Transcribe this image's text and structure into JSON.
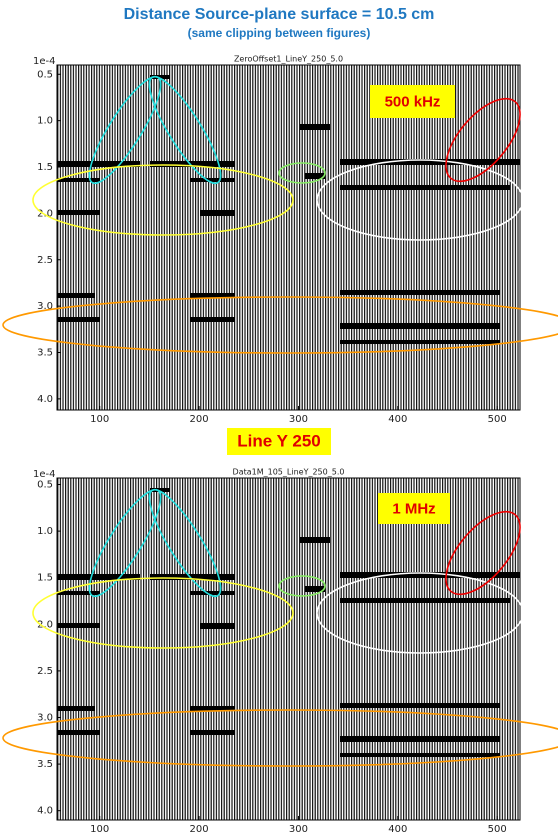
{
  "title": "Distance Source-plane surface = 10.5 cm",
  "subtitle": "(same clipping between figures)",
  "separator_label": "Line Y 250",
  "chart_data": [
    {
      "type": "wiggle",
      "title": "ZeroOffset1_LineY_250_5.0",
      "annotation": "500 kHz",
      "y_offset_label": "1e-4",
      "xlim": [
        57,
        523
      ],
      "xticks": [
        100,
        200,
        300,
        400,
        500
      ],
      "ylim": [
        0.4,
        4.12
      ],
      "y_inverted": true,
      "yticks": [
        0.5,
        {
          "value": 1,
          "label": "1.0"
        },
        1.5,
        {
          "value": 2,
          "label": "2.0"
        },
        2.5,
        {
          "value": 3,
          "label": "3.0"
        },
        3.5,
        {
          "value": 4,
          "label": "4.0"
        }
      ]
    },
    {
      "type": "wiggle",
      "title": "Data1M_105_LineY_250_5.0",
      "annotation": "1 MHz",
      "y_offset_label": "1e-4",
      "xlim": [
        57,
        523
      ],
      "xticks": [
        100,
        200,
        300,
        400,
        500
      ],
      "ylim": [
        0.43,
        4.1
      ],
      "y_inverted": true,
      "yticks": [
        0.5,
        {
          "value": 1,
          "label": "1.0"
        },
        1.5,
        {
          "value": 2,
          "label": "2.0"
        },
        2.5,
        {
          "value": 3,
          "label": "3.0"
        },
        3.5,
        {
          "value": 4,
          "label": "4.0"
        }
      ]
    }
  ]
}
